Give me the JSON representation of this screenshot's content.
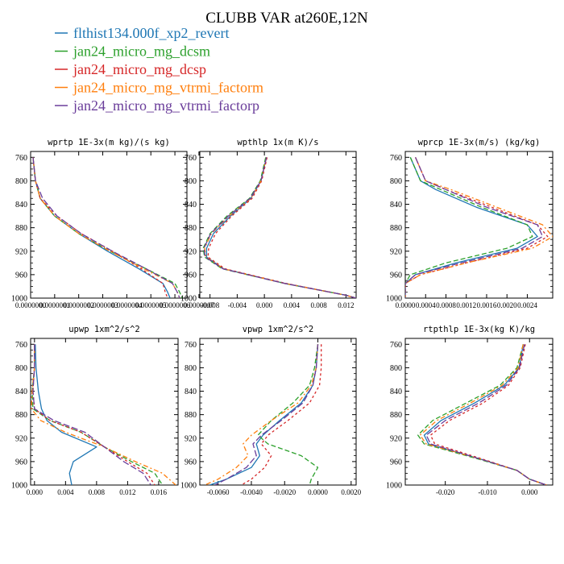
{
  "figure_title": "CLUBB VAR at260E,12N",
  "legend": [
    {
      "name": "flthist134.000f_xp2_revert",
      "color": "#1f77b4"
    },
    {
      "name": "jan24_micro_mg_dcsm",
      "color": "#2ca02c"
    },
    {
      "name": "jan24_micro_mg_dcsp",
      "color": "#d62728"
    },
    {
      "name": "jan24_micro_mg_vtrmi_factorm",
      "color": "#ff7f0e"
    },
    {
      "name": "jan24_micro_mg_vtrmi_factorp",
      "color": "#6a3d9a"
    }
  ],
  "chart_data": [
    {
      "type": "line",
      "title": "wprtp  1E-3x(m kg)/(s kg)",
      "xlim": [
        0.0,
        6.5e-07
      ],
      "ylim": [
        1000,
        750
      ],
      "x_tick_labels": [
        "0.0000000",
        "0.0000001",
        "0.0000002",
        "0.0000003",
        "0.0000004",
        "0.0000005",
        "0.0000006",
        "0.0000007"
      ],
      "x_ticks": [
        0.0,
        1e-07,
        2e-07,
        3e-07,
        4e-07,
        5e-07,
        6e-07,
        7e-07
      ],
      "y_ticks": [
        760,
        800,
        840,
        880,
        920,
        960,
        1000
      ],
      "series": [
        {
          "name": "flthist134.000f_xp2_revert",
          "x": [
            1e-08,
            2e-08,
            4e-08,
            1e-07,
            2e-07,
            3.2e-07,
            4.5e-07,
            5.5e-07,
            5.7e-07,
            5.8e-07
          ],
          "y": [
            760,
            800,
            830,
            860,
            890,
            920,
            950,
            975,
            990,
            1000
          ]
        },
        {
          "name": "jan24_micro_mg_dcsm",
          "x": [
            1e-08,
            2e-08,
            4e-08,
            1e-07,
            2e-07,
            3.3e-07,
            4.8e-07,
            6e-07,
            6.2e-07,
            6.3e-07
          ],
          "y": [
            760,
            800,
            830,
            860,
            890,
            920,
            950,
            975,
            990,
            1000
          ]
        },
        {
          "name": "jan24_micro_mg_dcsp",
          "x": [
            1e-08,
            2e-08,
            4e-08,
            1.1e-07,
            2.1e-07,
            3.4e-07,
            4.6e-07,
            5.5e-07,
            5.6e-07,
            5.7e-07
          ],
          "y": [
            760,
            800,
            830,
            860,
            890,
            920,
            950,
            975,
            990,
            1000
          ]
        },
        {
          "name": "jan24_micro_mg_vtrmi_factorm",
          "x": [
            1e-08,
            2e-08,
            4e-08,
            1e-07,
            2e-07,
            3.3e-07,
            4.7e-07,
            5.9e-07,
            6.1e-07,
            6.2e-07
          ],
          "y": [
            760,
            800,
            830,
            860,
            890,
            920,
            950,
            975,
            990,
            1000
          ]
        },
        {
          "name": "jan24_micro_mg_vtrmi_factorp",
          "x": [
            1e-08,
            2e-08,
            5e-08,
            1.1e-07,
            2.1e-07,
            3.4e-07,
            4.8e-07,
            5.9e-07,
            6.1e-07,
            6.2e-07
          ],
          "y": [
            760,
            800,
            830,
            860,
            890,
            920,
            950,
            975,
            990,
            1000
          ]
        }
      ]
    },
    {
      "type": "line",
      "title": "wpthlp  1x(m K)/s",
      "xlim": [
        -0.0095,
        0.0135
      ],
      "ylim": [
        1000,
        750
      ],
      "x_tick_labels": [
        "-0.008",
        "-0.004",
        "0.000",
        "0.004",
        "0.008",
        "0.012"
      ],
      "x_ticks": [
        -0.008,
        -0.004,
        0.0,
        0.004,
        0.008,
        0.012
      ],
      "y_ticks": [
        760,
        800,
        840,
        880,
        920,
        960,
        1000
      ],
      "series": [
        {
          "name": "flthist134.000f_xp2_revert",
          "x": [
            0.0003,
            -0.0005,
            -0.002,
            -0.005,
            -0.0075,
            -0.0085,
            -0.0085,
            -0.006,
            0.003,
            0.012,
            0.0135
          ],
          "y": [
            760,
            800,
            830,
            860,
            890,
            915,
            930,
            950,
            975,
            995,
            1000
          ]
        },
        {
          "name": "jan24_micro_mg_dcsm",
          "x": [
            0.0002,
            -0.0006,
            -0.0022,
            -0.0055,
            -0.008,
            -0.009,
            -0.0088,
            -0.0062,
            0.003,
            0.012,
            0.0135
          ],
          "y": [
            760,
            800,
            830,
            860,
            890,
            915,
            930,
            950,
            975,
            995,
            1000
          ]
        },
        {
          "name": "jan24_micro_mg_dcsp",
          "x": [
            0.0004,
            -0.0004,
            -0.0018,
            -0.0048,
            -0.0072,
            -0.0082,
            -0.0083,
            -0.0058,
            0.0032,
            0.012,
            0.0135
          ],
          "y": [
            760,
            800,
            830,
            860,
            890,
            915,
            930,
            950,
            975,
            995,
            1000
          ]
        },
        {
          "name": "jan24_micro_mg_vtrmi_factorm",
          "x": [
            0.0003,
            -0.0005,
            -0.002,
            -0.0052,
            -0.0078,
            -0.0088,
            -0.0086,
            -0.006,
            0.003,
            0.012,
            0.0135
          ],
          "y": [
            760,
            800,
            830,
            860,
            890,
            915,
            930,
            950,
            975,
            995,
            1000
          ]
        },
        {
          "name": "jan24_micro_mg_vtrmi_factorp",
          "x": [
            0.0003,
            -0.0005,
            -0.0021,
            -0.0053,
            -0.0079,
            -0.0089,
            -0.0087,
            -0.0061,
            0.003,
            0.012,
            0.0135
          ],
          "y": [
            760,
            800,
            830,
            860,
            890,
            915,
            930,
            950,
            975,
            995,
            1000
          ]
        }
      ]
    },
    {
      "type": "line",
      "title": "wprcp  1E-3x(m/s) (kg/kg)",
      "xlim": [
        0.0,
        0.0029
      ],
      "ylim": [
        1000,
        750
      ],
      "x_tick_labels": [
        "0.0000",
        "0.0004",
        "0.0008",
        "0.0012",
        "0.0016",
        "0.0020",
        "0.0024"
      ],
      "x_ticks": [
        0.0,
        0.0004,
        0.0008,
        0.0012,
        0.0016,
        0.002,
        0.0024
      ],
      "y_ticks": [
        760,
        800,
        840,
        880,
        920,
        960,
        1000
      ],
      "series": [
        {
          "name": "flthist134.000f_xp2_revert",
          "x": [
            0.0001,
            0.0003,
            0.0006,
            0.0014,
            0.0024,
            0.0026,
            0.0022,
            0.001,
            0.0002,
            0.0,
            0.0
          ],
          "y": [
            760,
            800,
            815,
            845,
            875,
            895,
            915,
            940,
            960,
            975,
            1000
          ]
        },
        {
          "name": "jan24_micro_mg_dcsm",
          "x": [
            0.0001,
            0.0003,
            0.0007,
            0.0015,
            0.0024,
            0.0025,
            0.002,
            0.0008,
            0.0001,
            0.0,
            0.0
          ],
          "y": [
            760,
            800,
            815,
            845,
            875,
            895,
            915,
            940,
            960,
            975,
            1000
          ]
        },
        {
          "name": "jan24_micro_mg_dcsp",
          "x": [
            0.0002,
            0.0004,
            0.0008,
            0.0017,
            0.0026,
            0.0028,
            0.0024,
            0.0012,
            0.0003,
            0.0,
            0.0
          ],
          "y": [
            760,
            800,
            815,
            845,
            875,
            895,
            915,
            940,
            960,
            975,
            1000
          ]
        },
        {
          "name": "jan24_micro_mg_vtrmi_factorm",
          "x": [
            0.0002,
            0.0004,
            0.0009,
            0.0018,
            0.0027,
            0.0029,
            0.0025,
            0.0012,
            0.0003,
            0.0,
            0.0
          ],
          "y": [
            760,
            800,
            815,
            845,
            875,
            895,
            915,
            940,
            960,
            975,
            1000
          ]
        },
        {
          "name": "jan24_micro_mg_vtrmi_factorp",
          "x": [
            0.0002,
            0.0004,
            0.0008,
            0.0016,
            0.0026,
            0.0027,
            0.0023,
            0.0011,
            0.0002,
            0.0,
            0.0
          ],
          "y": [
            760,
            800,
            815,
            845,
            875,
            895,
            915,
            940,
            960,
            975,
            1000
          ]
        }
      ]
    },
    {
      "type": "line",
      "title": "upwp  1xm^2/s^2",
      "xlim": [
        -0.0005,
        0.0185
      ],
      "ylim": [
        1000,
        750
      ],
      "x_tick_labels": [
        "0.000",
        "0.004",
        "0.008",
        "0.012",
        "0.016"
      ],
      "x_ticks": [
        0.0,
        0.004,
        0.008,
        0.012,
        0.016
      ],
      "y_ticks": [
        760,
        800,
        840,
        880,
        920,
        960,
        1000
      ],
      "series": [
        {
          "name": "flthist134.000f_xp2_revert",
          "x": [
            0.0001,
            0.0002,
            0.0005,
            0.0009,
            0.0016,
            0.0035,
            0.008,
            0.005,
            0.0045,
            0.0048
          ],
          "y": [
            760,
            800,
            840,
            870,
            890,
            910,
            935,
            960,
            980,
            1000
          ]
        },
        {
          "name": "jan24_micro_mg_dcsm",
          "x": [
            0.0,
            0.0,
            -0.0003,
            -0.0002,
            0.002,
            0.006,
            0.009,
            0.0125,
            0.0155,
            0.0165
          ],
          "y": [
            760,
            800,
            840,
            870,
            890,
            910,
            935,
            960,
            980,
            1000
          ]
        },
        {
          "name": "jan24_micro_mg_dcsp",
          "x": [
            0.0,
            0.0,
            -0.0002,
            0.0,
            0.002,
            0.006,
            0.009,
            0.012,
            0.0145,
            0.0155
          ],
          "y": [
            760,
            800,
            840,
            870,
            890,
            910,
            935,
            960,
            980,
            1000
          ]
        },
        {
          "name": "jan24_micro_mg_vtrmi_factorm",
          "x": [
            0.0,
            0.0,
            -0.0003,
            -0.0004,
            0.0008,
            0.004,
            0.009,
            0.013,
            0.0165,
            0.0182
          ],
          "y": [
            760,
            800,
            840,
            870,
            890,
            910,
            935,
            960,
            980,
            1000
          ]
        },
        {
          "name": "jan24_micro_mg_vtrmi_factorp",
          "x": [
            0.0,
            0.0,
            -0.0002,
            0.0,
            0.0025,
            0.0065,
            0.009,
            0.0115,
            0.014,
            0.015
          ],
          "y": [
            760,
            800,
            840,
            870,
            890,
            910,
            935,
            960,
            980,
            1000
          ]
        }
      ]
    },
    {
      "type": "line",
      "title": "vpwp  1xm^2/s^2",
      "xlim": [
        -0.0071,
        0.0023
      ],
      "ylim": [
        1000,
        750
      ],
      "x_tick_labels": [
        "-0.0060",
        "-0.0040",
        "-0.0020",
        "0.0000",
        "0.0020"
      ],
      "x_ticks": [
        -0.006,
        -0.004,
        -0.002,
        0.0,
        0.002
      ],
      "y_ticks": [
        760,
        800,
        840,
        880,
        920,
        960,
        1000
      ],
      "series": [
        {
          "name": "flthist134.000f_xp2_revert",
          "x": [
            0.0,
            -0.0001,
            -0.0003,
            -0.001,
            -0.0023,
            -0.0033,
            -0.0037,
            -0.0035,
            -0.004,
            -0.0055,
            -0.0065
          ],
          "y": [
            760,
            800,
            830,
            860,
            890,
            915,
            930,
            950,
            970,
            990,
            1000
          ]
        },
        {
          "name": "jan24_micro_mg_dcsm",
          "x": [
            0.0,
            -0.0002,
            -0.0005,
            -0.0015,
            -0.0028,
            -0.0036,
            -0.003,
            -0.001,
            0.0,
            -0.0004,
            -0.0005
          ],
          "y": [
            760,
            800,
            830,
            860,
            890,
            915,
            930,
            950,
            970,
            990,
            1000
          ]
        },
        {
          "name": "jan24_micro_mg_dcsp",
          "x": [
            0.0002,
            0.0002,
            0.0001,
            -0.0005,
            -0.0018,
            -0.003,
            -0.0034,
            -0.0028,
            -0.0032,
            -0.004,
            -0.0046
          ],
          "y": [
            760,
            800,
            830,
            860,
            890,
            915,
            930,
            950,
            970,
            990,
            1000
          ]
        },
        {
          "name": "jan24_micro_mg_vtrmi_factorm",
          "x": [
            0.0,
            -0.0001,
            -0.0004,
            -0.0012,
            -0.0028,
            -0.004,
            -0.0045,
            -0.0042,
            -0.0049,
            -0.006,
            -0.0068
          ],
          "y": [
            760,
            800,
            830,
            860,
            890,
            915,
            930,
            950,
            970,
            990,
            1000
          ]
        },
        {
          "name": "jan24_micro_mg_vtrmi_factorp",
          "x": [
            0.0,
            -0.0001,
            -0.0003,
            -0.0009,
            -0.0022,
            -0.0034,
            -0.0039,
            -0.0037,
            -0.0043,
            -0.0055,
            -0.0062
          ],
          "y": [
            760,
            800,
            830,
            860,
            890,
            915,
            930,
            950,
            970,
            990,
            1000
          ]
        }
      ]
    },
    {
      "type": "line",
      "title": "rtpthlp  1E-3x(kg K)/kg",
      "xlim": [
        -0.0295,
        0.0055
      ],
      "ylim": [
        1000,
        750
      ],
      "x_tick_labels": [
        "-0.020",
        "-0.010",
        "0.000"
      ],
      "x_ticks": [
        -0.02,
        -0.01,
        0.0
      ],
      "y_ticks": [
        760,
        800,
        840,
        880,
        920,
        960,
        1000
      ],
      "series": [
        {
          "name": "flthist134.000f_xp2_revert",
          "x": [
            -0.0015,
            -0.0025,
            -0.006,
            -0.013,
            -0.021,
            -0.025,
            -0.024,
            -0.012,
            -0.003,
            0.0,
            0.004
          ],
          "y": [
            760,
            800,
            830,
            860,
            890,
            915,
            930,
            955,
            975,
            990,
            1000
          ]
        },
        {
          "name": "jan24_micro_mg_dcsm",
          "x": [
            -0.0015,
            -0.003,
            -0.007,
            -0.015,
            -0.023,
            -0.0265,
            -0.025,
            -0.0125,
            -0.003,
            0.0,
            0.004
          ],
          "y": [
            760,
            800,
            830,
            860,
            890,
            915,
            930,
            955,
            975,
            990,
            1000
          ]
        },
        {
          "name": "jan24_micro_mg_dcsp",
          "x": [
            -0.001,
            -0.0022,
            -0.005,
            -0.011,
            -0.019,
            -0.0235,
            -0.0225,
            -0.0115,
            -0.003,
            0.0,
            0.004
          ],
          "y": [
            760,
            800,
            830,
            860,
            890,
            915,
            930,
            955,
            975,
            990,
            1000
          ]
        },
        {
          "name": "jan24_micro_mg_vtrmi_factorm",
          "x": [
            -0.0015,
            -0.0027,
            -0.0065,
            -0.014,
            -0.022,
            -0.026,
            -0.0245,
            -0.012,
            -0.003,
            0.0,
            0.004
          ],
          "y": [
            760,
            800,
            830,
            860,
            890,
            915,
            930,
            955,
            975,
            990,
            1000
          ]
        },
        {
          "name": "jan24_micro_mg_vtrmi_factorp",
          "x": [
            -0.0012,
            -0.0024,
            -0.0055,
            -0.012,
            -0.02,
            -0.0245,
            -0.0235,
            -0.012,
            -0.003,
            0.0,
            0.004
          ],
          "y": [
            760,
            800,
            830,
            860,
            890,
            915,
            930,
            955,
            975,
            990,
            1000
          ]
        }
      ]
    }
  ]
}
